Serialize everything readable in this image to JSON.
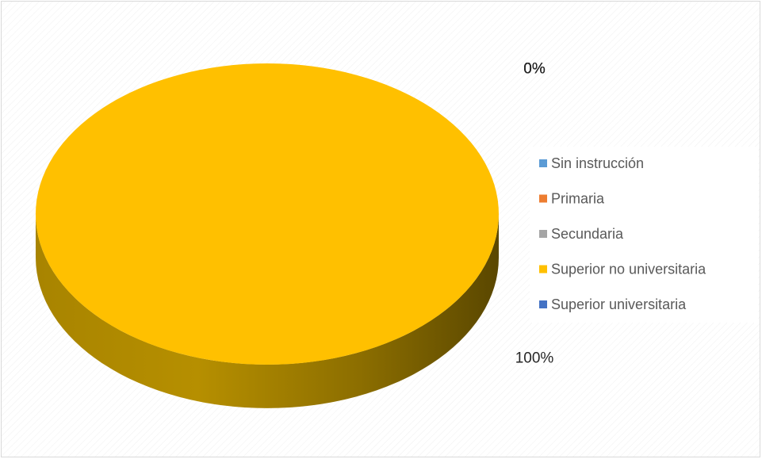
{
  "chart_data": {
    "type": "pie",
    "categories": [
      "Sin instrucción",
      "Primaria",
      "Secundaria",
      "Superior no universitaria",
      "Superior universitaria"
    ],
    "values": [
      0,
      0,
      0,
      100,
      0
    ],
    "value_labels": [
      "0%",
      "0%",
      "0%",
      "100%",
      "0%"
    ],
    "colors": [
      "#5b9bd5",
      "#ed7d31",
      "#a5a5a5",
      "#ffc000",
      "#4472c4"
    ],
    "legend": "right"
  }
}
